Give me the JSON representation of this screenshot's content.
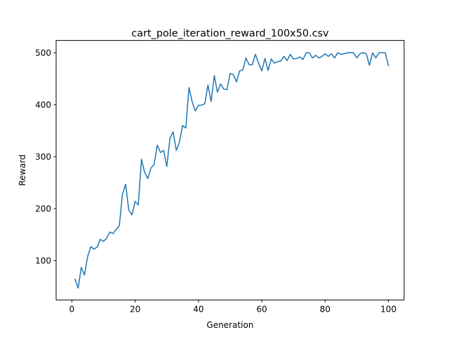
{
  "chart_data": {
    "type": "line",
    "title": "cart_pole_iteration_reward_100x50.csv",
    "xlabel": "Generation",
    "ylabel": "Reward",
    "xlim": [
      -4.95,
      104.95
    ],
    "ylim": [
      24.3,
      523.7
    ],
    "xticks": [
      0,
      20,
      40,
      60,
      80,
      100
    ],
    "yticks": [
      100,
      200,
      300,
      400,
      500
    ],
    "grid": false,
    "legend": "none",
    "series": [
      {
        "color": "#1f77b4",
        "x": [
          1,
          2,
          3,
          4,
          5,
          6,
          7,
          8,
          9,
          10,
          11,
          12,
          13,
          14,
          15,
          16,
          17,
          18,
          19,
          20,
          21,
          22,
          23,
          24,
          25,
          26,
          27,
          28,
          29,
          30,
          31,
          32,
          33,
          34,
          35,
          36,
          37,
          38,
          39,
          40,
          41,
          42,
          43,
          44,
          45,
          46,
          47,
          48,
          49,
          50,
          51,
          52,
          53,
          54,
          55,
          56,
          57,
          58,
          59,
          60,
          61,
          62,
          63,
          64,
          65,
          66,
          67,
          68,
          69,
          70,
          71,
          72,
          73,
          74,
          75,
          76,
          77,
          78,
          79,
          80,
          81,
          82,
          83,
          84,
          85,
          86,
          87,
          88,
          89,
          90,
          91,
          92,
          93,
          94,
          95,
          96,
          97,
          98,
          99,
          100
        ],
        "values": [
          64,
          47,
          87,
          72,
          108,
          127,
          122,
          126,
          141,
          137,
          143,
          155,
          152,
          160,
          167,
          228,
          247,
          197,
          188,
          214,
          207,
          295,
          270,
          258,
          278,
          285,
          322,
          308,
          312,
          281,
          335,
          348,
          312,
          328,
          360,
          355,
          433,
          406,
          388,
          399,
          399,
          402,
          438,
          406,
          456,
          424,
          440,
          430,
          429,
          460,
          458,
          444,
          465,
          467,
          490,
          477,
          477,
          497,
          480,
          465,
          489,
          466,
          488,
          480,
          483,
          484,
          493,
          485,
          497,
          488,
          489,
          492,
          487,
          500,
          500,
          490,
          495,
          490,
          493,
          498,
          493,
          498,
          490,
          500,
          497,
          498,
          500,
          500,
          500,
          490,
          498,
          500,
          498,
          476,
          500,
          490,
          500,
          500,
          500,
          475
        ]
      }
    ]
  }
}
